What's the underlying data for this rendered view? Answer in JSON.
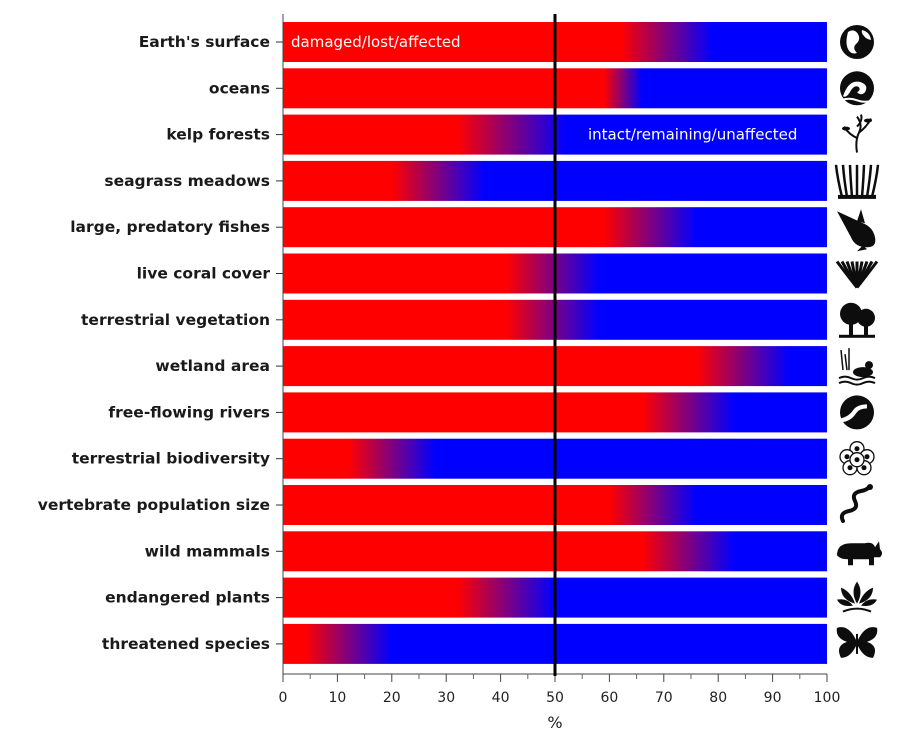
{
  "chart_data": {
    "type": "bar",
    "orientation": "horizontal",
    "stacked_gradient": true,
    "categories": [
      "Earth's surface",
      "oceans",
      "kelp forests",
      "seagrass meadows",
      "large, predatory fishes",
      "live coral cover",
      "terrestrial vegetation",
      "wetland area",
      "free-flowing rivers",
      "terrestrial biodiversity",
      "vertebrate population size",
      "wild mammals",
      "endangered plants",
      "threatened species"
    ],
    "series": [
      {
        "name": "damaged/lost/affected",
        "color": "#ff0000",
        "ranges": [
          [
            62,
            79
          ],
          [
            59,
            66
          ],
          [
            32,
            52
          ],
          [
            20,
            37
          ],
          [
            59,
            76
          ],
          [
            41,
            58
          ],
          [
            41,
            58
          ],
          [
            76,
            93
          ],
          [
            66,
            83
          ],
          [
            12,
            28
          ],
          [
            60,
            76
          ],
          [
            66,
            83
          ],
          [
            32,
            50
          ],
          [
            4,
            20
          ]
        ]
      },
      {
        "name": "intact/remaining/unaffected",
        "color": "#0000ff"
      }
    ],
    "icons": [
      "globe-icon",
      "wave-icon",
      "kelp-icon",
      "seagrass-icon",
      "marlin-icon",
      "coral-icon",
      "trees-icon",
      "wetland-duck-icon",
      "river-icon",
      "biodiversity-circles-icon",
      "snake-icon",
      "rhino-icon",
      "lotus-icon",
      "butterfly-icon"
    ],
    "annotations": [
      {
        "text": "damaged/lost/affected",
        "row": 0,
        "side": "left"
      },
      {
        "text": "intact/remaining/unaffected",
        "row": 2,
        "side": "right"
      }
    ],
    "x_ticks": [
      "0",
      "10",
      "20",
      "30",
      "40",
      "50",
      "60",
      "70",
      "80",
      "90",
      "100"
    ],
    "xlim": [
      0,
      100
    ],
    "xlabel": "%",
    "reference_line": 50,
    "grid": false
  }
}
